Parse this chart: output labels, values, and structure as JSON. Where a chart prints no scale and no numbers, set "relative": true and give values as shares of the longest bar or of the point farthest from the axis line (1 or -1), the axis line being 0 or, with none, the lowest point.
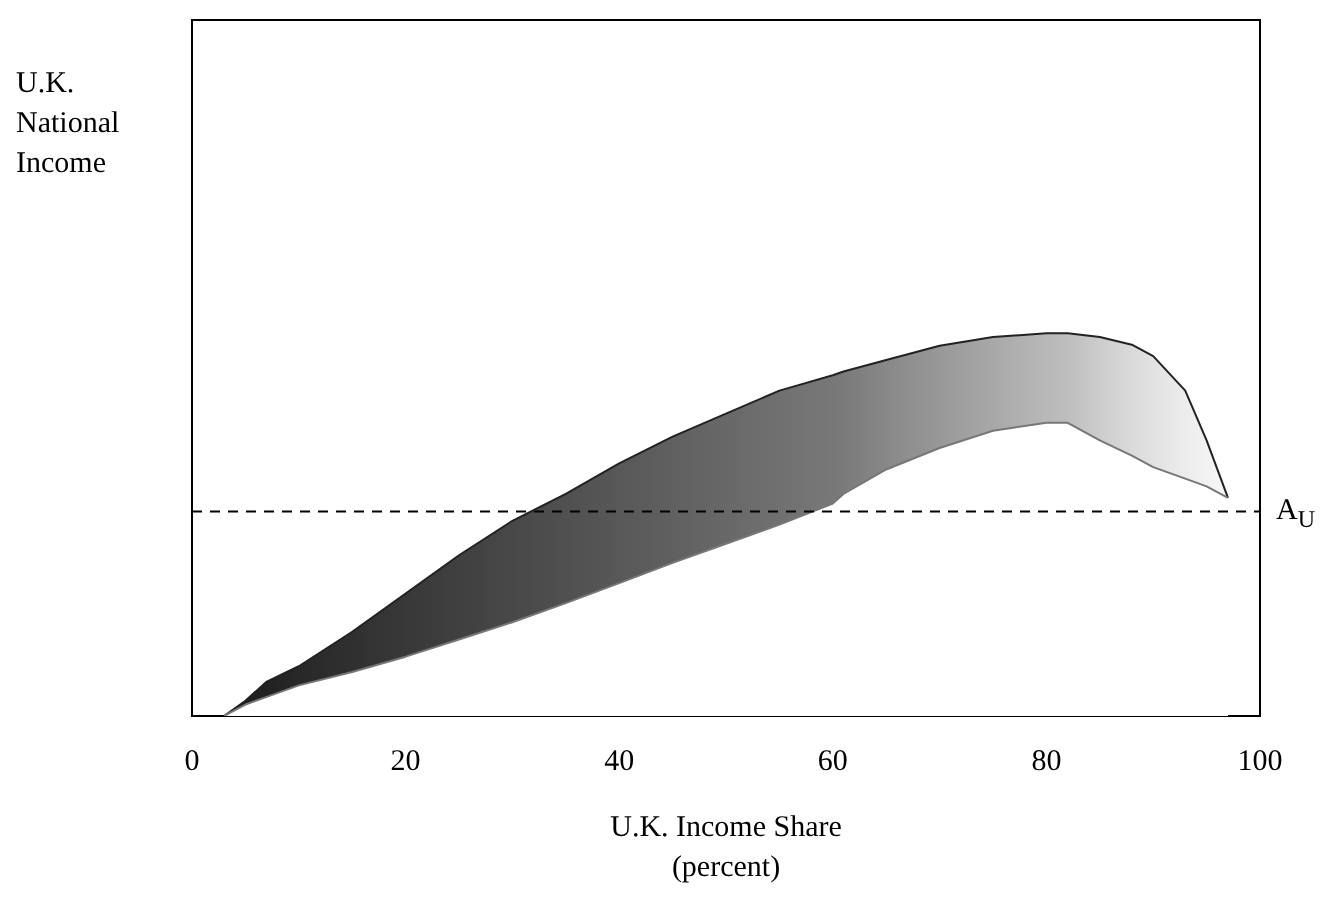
{
  "chart_data": {
    "type": "area",
    "relative": true,
    "xlabel": "U.K. Income Share\n(percent)",
    "annotations": [
      "U.K.\nNational\nIncome"
    ],
    "xlim": [
      0,
      100
    ],
    "xticks": [
      0,
      20,
      40,
      60,
      80,
      100
    ],
    "x": [
      3,
      5,
      7,
      10,
      15,
      20,
      25,
      30,
      35,
      40,
      45,
      50,
      55,
      60,
      61,
      65,
      70,
      75,
      80,
      82,
      85,
      88,
      90,
      93,
      95,
      97
    ],
    "series": [
      {
        "values": [
          0,
          0.04,
          0.09,
          0.13,
          0.22,
          0.32,
          0.42,
          0.51,
          0.58,
          0.66,
          0.73,
          0.79,
          0.85,
          0.89,
          0.9,
          0.93,
          0.967,
          0.99,
          1,
          1,
          0.99,
          0.97,
          0.94,
          0.85,
          0.72,
          0.57
        ],
        "colors": [
          "#1a1a1a",
          "#1e1e1e",
          "#222222",
          "#282828",
          "#303030",
          "#383838",
          "#404040",
          "#484848",
          "#505050",
          "#585858",
          "#606060",
          "#686868",
          "#707070",
          "#787878",
          "#7a7a7a",
          "#888888",
          "#989898",
          "#a8a8a8",
          "#b8b8b8",
          "#bebebe",
          "#cccccc",
          "#dadada",
          "#e2e2e2",
          "#ececec",
          "#f2f2f2",
          "#f8f8f8"
        ]
      },
      {
        "values": [
          0,
          0.03,
          0.05,
          0.08,
          0.115,
          0.155,
          0.2,
          0.245,
          0.295,
          0.347,
          0.4,
          0.45,
          0.5,
          0.555,
          0.58,
          0.644,
          0.7,
          0.745,
          0.766,
          0.766,
          0.72,
          0.68,
          0.65,
          0.62,
          0.6,
          0.57
        ],
        "color": "#ffffff"
      }
    ],
    "ref_lines": [
      {
        "axis": "y",
        "value": 0.534,
        "label": "A$_{U}$",
        "line_style": "dashed",
        "color": "#000000"
      }
    ]
  }
}
